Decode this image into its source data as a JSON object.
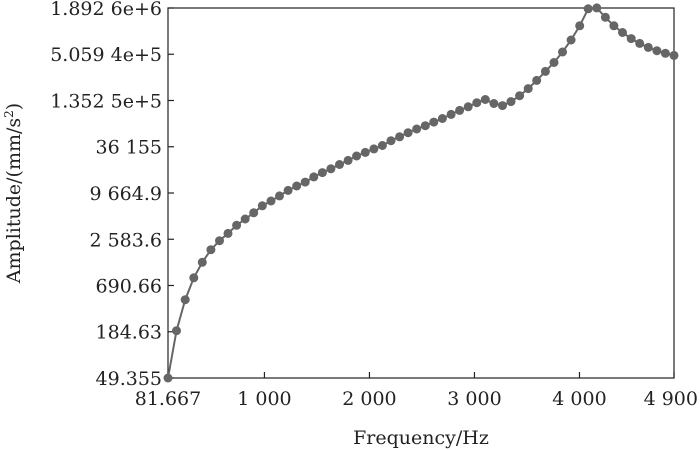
{
  "chart_data": {
    "type": "line",
    "xlabel": "Frequency/Hz",
    "ylabel": "Amplitude/(mm/s",
    "ylabel_sup": "2",
    "ylabel_tail": ")",
    "xlim": [
      81.667,
      4900
    ],
    "ylim": [
      49.355,
      1892600
    ],
    "yscale": "log",
    "grid": false,
    "colors": {
      "line": "#666666",
      "marker": "#666666",
      "axis": "#222222"
    },
    "x_ticks": [
      {
        "value": 81.667,
        "label": "81.667"
      },
      {
        "value": 1000,
        "label": "1 000"
      },
      {
        "value": 2000,
        "label": "2 000"
      },
      {
        "value": 3000,
        "label": "3 000"
      },
      {
        "value": 4000,
        "label": "4 000"
      },
      {
        "value": 4900,
        "label": "4 900"
      }
    ],
    "y_ticks": [
      {
        "value": 49.355,
        "label": "49.355"
      },
      {
        "value": 184.63,
        "label": "184.63"
      },
      {
        "value": 690.66,
        "label": "690.66"
      },
      {
        "value": 2583.6,
        "label": "2 583.6"
      },
      {
        "value": 9664.9,
        "label": "9 664.9"
      },
      {
        "value": 36155,
        "label": "36 155"
      },
      {
        "value": 135250,
        "label": "1.352 5e+5"
      },
      {
        "value": 505940,
        "label": "5.059 4e+5"
      },
      {
        "value": 1892600,
        "label": "1.892 6e+6"
      }
    ],
    "series": [
      {
        "x": [
          81.667,
          163,
          245,
          327,
          408,
          490,
          572,
          653,
          735,
          817,
          898,
          980,
          1062,
          1143,
          1225,
          1307,
          1388,
          1470,
          1552,
          1633,
          1715,
          1797,
          1878,
          1960,
          2042,
          2123,
          2205,
          2287,
          2368,
          2450,
          2532,
          2613,
          2695,
          2777,
          2858,
          2940,
          3022,
          3103,
          3185,
          3267,
          3348,
          3430,
          3512,
          3593,
          3675,
          3757,
          3838,
          3920,
          4002,
          4083,
          4165,
          4247,
          4328,
          4410,
          4492,
          4573,
          4655,
          4737,
          4818,
          4900
        ],
        "y": [
          49.4,
          190,
          460,
          860,
          1340,
          1920,
          2480,
          3050,
          3850,
          4600,
          5500,
          6700,
          7700,
          8900,
          10400,
          11800,
          13200,
          15300,
          17300,
          19300,
          21800,
          24500,
          27800,
          30800,
          34000,
          37500,
          43000,
          48000,
          54000,
          60000,
          66000,
          73000,
          81000,
          91000,
          102000,
          113000,
          127000,
          139000,
          124000,
          117000,
          131000,
          155000,
          190000,
          240000,
          310000,
          400000,
          540000,
          760000,
          1140000,
          1850000,
          1900000,
          1450000,
          1140000,
          940000,
          790000,
          690000,
          615000,
          560000,
          520000,
          490000
        ]
      }
    ]
  }
}
